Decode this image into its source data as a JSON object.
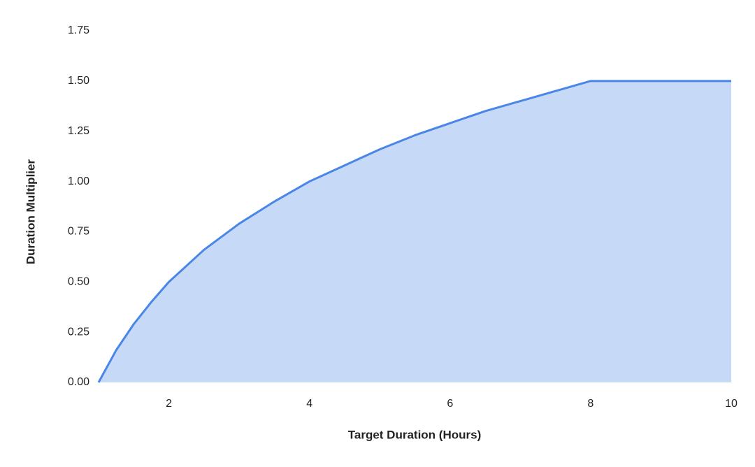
{
  "chart_data": {
    "type": "area",
    "x_label": "Target Duration (Hours)",
    "y_label": "Duration Multiplier",
    "x": [
      1,
      1.25,
      1.5,
      1.75,
      2,
      2.5,
      3,
      3.5,
      4,
      4.5,
      5,
      5.5,
      6,
      6.5,
      7,
      7.5,
      8,
      10
    ],
    "values": [
      0,
      0.16,
      0.29,
      0.4,
      0.5,
      0.66,
      0.79,
      0.9,
      1.0,
      1.08,
      1.16,
      1.23,
      1.29,
      1.35,
      1.4,
      1.45,
      1.5,
      1.5
    ],
    "color": "#4a86e8",
    "fill_color": "#c6daf8",
    "xlim": [
      1,
      10
    ],
    "xticks": [
      2,
      4,
      6,
      8,
      10
    ],
    "ylim": [
      0,
      1.75
    ],
    "yticks": [
      {
        "value": 0,
        "label": "0.00"
      },
      {
        "value": 0.25,
        "label": "0.25"
      },
      {
        "value": 0.5,
        "label": "0.50"
      },
      {
        "value": 0.75,
        "label": "0.75"
      },
      {
        "value": 1,
        "label": "1.00"
      },
      {
        "value": 1.25,
        "label": "1.25"
      },
      {
        "value": 1.5,
        "label": "1.50"
      },
      {
        "value": 1.75,
        "label": "1.75"
      }
    ],
    "grid": false
  }
}
